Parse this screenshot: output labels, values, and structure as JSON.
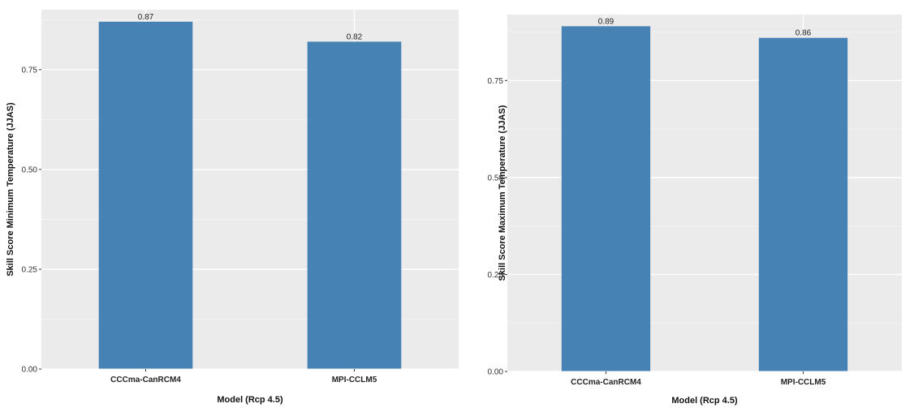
{
  "chart_data": [
    {
      "type": "bar",
      "categories": [
        "CCCma-CanRCM4",
        "MPI-CCLM5"
      ],
      "values": [
        0.87,
        0.82
      ],
      "data_labels": [
        "0.87",
        "0.82"
      ],
      "xlabel": "Model (Rcp 4.5)",
      "ylabel": "Skill Score Minimum Temperature (JJAS)",
      "yticks": [
        "0.00",
        "0.25",
        "0.50",
        "0.75"
      ],
      "ylim": [
        0,
        0.9
      ],
      "grid": true,
      "bar_color": "#4682B4",
      "panel_color": "#EBEBEB"
    },
    {
      "type": "bar",
      "categories": [
        "CCCma-CanRCM4",
        "MPI-CCLM5"
      ],
      "values": [
        0.89,
        0.86
      ],
      "data_labels": [
        "0.89",
        "0.86"
      ],
      "xlabel": "Model (Rcp 4.5)",
      "ylabel": "Skill Score Maximum Temperature (JJAS)",
      "yticks": [
        "0.00",
        "0.25",
        "0.50",
        "0.75"
      ],
      "ylim": [
        0,
        0.92
      ],
      "grid": true,
      "bar_color": "#4682B4",
      "panel_color": "#EBEBEB"
    }
  ]
}
